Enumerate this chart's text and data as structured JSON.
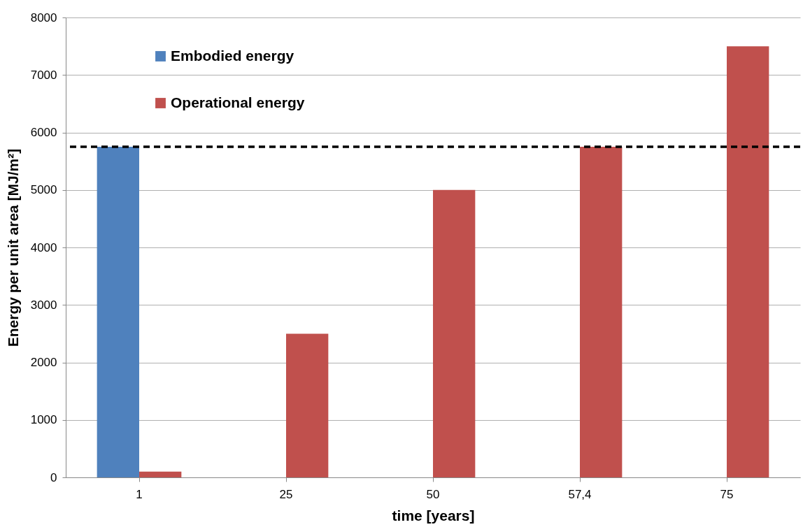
{
  "chart_data": {
    "type": "bar",
    "xlabel": "time [years]",
    "ylabel": "Energy per unit area [MJ/m²]",
    "categories": [
      "1",
      "25",
      "50",
      "57,4",
      "75"
    ],
    "series": [
      {
        "name": "Embodied energy",
        "color": "#4f81bd",
        "values": [
          5750,
          null,
          null,
          null,
          null
        ]
      },
      {
        "name": "Operational energy",
        "color": "#c0504d",
        "values": [
          100,
          2500,
          5000,
          5750,
          7500
        ]
      }
    ],
    "ylim": [
      0,
      8000
    ],
    "yticks": [
      0,
      1000,
      2000,
      3000,
      4000,
      5000,
      6000,
      7000,
      8000
    ],
    "grid": "y",
    "legend": "top left",
    "ref_lines": [
      {
        "axis": "y",
        "value": 5750,
        "color": "#000000",
        "line_style": "dashed"
      }
    ]
  }
}
